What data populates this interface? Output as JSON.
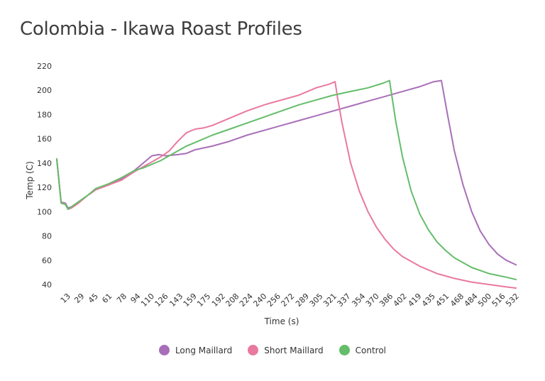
{
  "chart_data": {
    "type": "line",
    "title": "Colombia - Ikawa Roast Profiles",
    "xlabel": "Time (s)",
    "ylabel": "Temp (C)",
    "xlim": [
      0,
      532
    ],
    "ylim": [
      40,
      220
    ],
    "y_ticks": [
      40,
      60,
      80,
      100,
      120,
      140,
      160,
      180,
      200,
      220
    ],
    "x_ticks": [
      13,
      29,
      45,
      61,
      78,
      94,
      110,
      126,
      143,
      159,
      175,
      192,
      208,
      224,
      240,
      256,
      272,
      289,
      305,
      321,
      337,
      354,
      370,
      386,
      402,
      419,
      435,
      451,
      468,
      484,
      500,
      516,
      532
    ],
    "legend_position": "bottom",
    "series": [
      {
        "name": "Long Maillard",
        "color": "#a86fb8",
        "x": [
          0,
          5,
          10,
          13,
          17,
          25,
          35,
          45,
          60,
          75,
          90,
          100,
          110,
          118,
          126,
          140,
          150,
          160,
          180,
          200,
          220,
          240,
          260,
          280,
          300,
          320,
          340,
          360,
          380,
          400,
          420,
          436,
          445,
          452,
          460,
          470,
          480,
          490,
          500,
          510,
          520,
          532
        ],
        "values": [
          143,
          108,
          107,
          103,
          104,
          108,
          113,
          118,
          122,
          127,
          134,
          140,
          146,
          147,
          146,
          147,
          148,
          151,
          154,
          158,
          163,
          167,
          171,
          175,
          179,
          183,
          187,
          191,
          195,
          199,
          203,
          207,
          208,
          180,
          150,
          122,
          100,
          84,
          73,
          65,
          60,
          56
        ]
      },
      {
        "name": "Short Maillard",
        "color": "#e9799f",
        "x": [
          0,
          5,
          10,
          13,
          17,
          25,
          35,
          45,
          60,
          75,
          90,
          100,
          110,
          120,
          130,
          140,
          150,
          160,
          170,
          180,
          200,
          220,
          240,
          260,
          280,
          300,
          315,
          322,
          325,
          330,
          340,
          350,
          360,
          370,
          380,
          390,
          400,
          420,
          440,
          460,
          480,
          500,
          520,
          532
        ],
        "values": [
          143,
          108,
          106,
          102,
          103,
          107,
          113,
          118,
          122,
          126,
          133,
          137,
          141,
          145,
          150,
          158,
          165,
          168,
          169,
          171,
          177,
          183,
          188,
          192,
          196,
          202,
          205,
          207,
          193,
          173,
          140,
          117,
          100,
          87,
          77,
          69,
          63,
          55,
          49,
          45,
          42,
          40,
          38,
          37
        ]
      },
      {
        "name": "Control",
        "color": "#64bd6a",
        "x": [
          0,
          5,
          10,
          13,
          17,
          25,
          35,
          45,
          60,
          75,
          90,
          100,
          110,
          120,
          130,
          140,
          150,
          160,
          180,
          200,
          220,
          240,
          260,
          280,
          300,
          320,
          340,
          360,
          378,
          385,
          392,
          400,
          410,
          420,
          430,
          440,
          450,
          460,
          480,
          500,
          520,
          532
        ],
        "values": [
          144,
          107,
          106,
          102,
          104,
          108,
          113,
          119,
          123,
          128,
          134,
          136,
          139,
          142,
          146,
          150,
          154,
          157,
          163,
          168,
          173,
          178,
          183,
          188,
          192,
          196,
          199,
          202,
          206,
          208,
          175,
          145,
          117,
          98,
          85,
          75,
          68,
          62,
          54,
          49,
          46,
          44
        ]
      }
    ]
  }
}
